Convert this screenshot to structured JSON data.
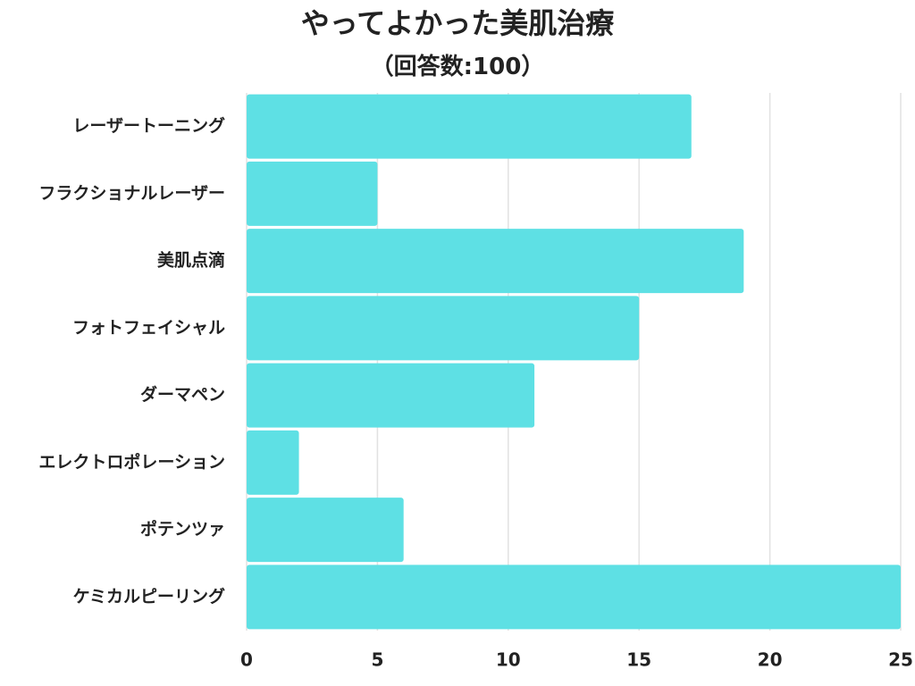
{
  "chart_data": {
    "type": "bar",
    "orientation": "horizontal",
    "title": "やってよかった美肌治療",
    "subtitle": "（回答数:100）",
    "categories": [
      "レーザートーニング",
      "フラクショナルレーザー",
      "美肌点滴",
      "フォトフェイシャル",
      "ダーマペン",
      "エレクトロポレーション",
      "ポテンツァ",
      "ケミカルピーリング"
    ],
    "values": [
      17,
      5,
      19,
      15,
      11,
      2,
      6,
      25
    ],
    "xlim": [
      0,
      25
    ],
    "xticks": [
      0,
      5,
      10,
      15,
      20,
      25
    ],
    "grid": true,
    "bar_color": "#5ee0e4",
    "grid_color": "#e2e2e2"
  }
}
